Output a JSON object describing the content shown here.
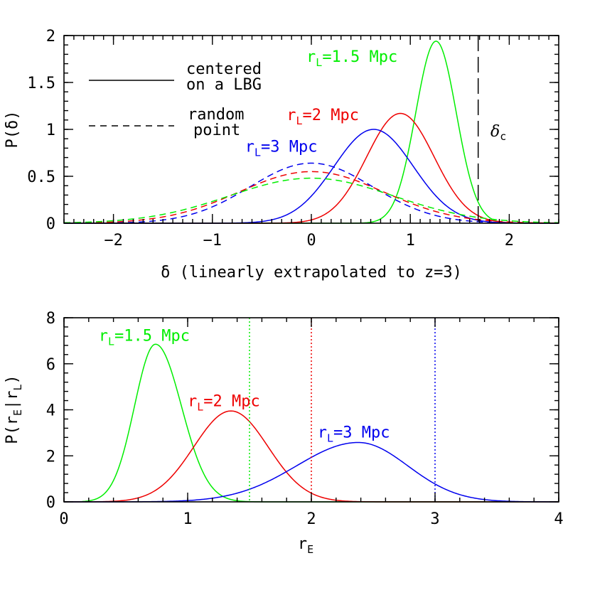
{
  "chart_data": [
    {
      "type": "line",
      "title": "",
      "xlabel": "δ (linearly extrapolated to z=3)",
      "ylabel": "P(δ)",
      "xlim": [
        -2.5,
        2.5
      ],
      "ylim": [
        0,
        2
      ],
      "x_ticks": [
        -2,
        -1,
        0,
        1,
        2
      ],
      "x_tick_labels": [
        "−2",
        "−1",
        "0",
        "1",
        "2"
      ],
      "y_ticks": [
        0,
        0.5,
        1,
        1.5,
        2
      ],
      "y_tick_labels": [
        "0",
        "0.5",
        "1",
        "1.5",
        "2"
      ],
      "legend": [
        {
          "style": "solid",
          "lines": [
            "centered",
            "on a LBG"
          ]
        },
        {
          "style": "dashed",
          "lines": [
            "random",
            "point"
          ]
        }
      ],
      "series": [
        {
          "name": "r_L=1.5 Mpc centered on a LBG",
          "color": "#00ee00",
          "style": "solid",
          "shape": "gaussian",
          "mean": 1.26,
          "sigma": 0.205,
          "peak": 1.94
        },
        {
          "name": "r_L=2 Mpc centered on a LBG",
          "color": "#ee0000",
          "style": "solid",
          "shape": "gaussian",
          "mean": 0.9,
          "sigma": 0.34,
          "peak": 1.17
        },
        {
          "name": "r_L=3 Mpc centered on a LBG",
          "color": "#0000ee",
          "style": "solid",
          "shape": "gaussian",
          "mean": 0.63,
          "sigma": 0.4,
          "peak": 1.0
        },
        {
          "name": "r_L=3 Mpc random point",
          "color": "#0000ee",
          "style": "dashed",
          "shape": "gaussian",
          "mean": 0.0,
          "sigma": 0.62,
          "peak": 0.64
        },
        {
          "name": "r_L=2 Mpc random point",
          "color": "#ee0000",
          "style": "dashed",
          "shape": "gaussian",
          "mean": 0.0,
          "sigma": 0.73,
          "peak": 0.55
        },
        {
          "name": "r_L=1.5 Mpc random point",
          "color": "#00ee00",
          "style": "dashed",
          "shape": "gaussian",
          "mean": 0.0,
          "sigma": 0.83,
          "peak": 0.48
        }
      ],
      "vlines": [
        {
          "x": 1.686,
          "color": "#000000",
          "style": "longdash",
          "label": "δ",
          "label_sub": "c"
        }
      ],
      "annotations": [
        {
          "text": "r",
          "sub": "L",
          "rest": "=1.5 Mpc",
          "color": "#00ee00",
          "at_x": -0.05,
          "at_y": 1.72
        },
        {
          "text": "r",
          "sub": "L",
          "rest": "=2 Mpc",
          "color": "#ee0000",
          "at_x": -0.25,
          "at_y": 1.1
        },
        {
          "text": "r",
          "sub": "L",
          "rest": "=3 Mpc",
          "color": "#0000ee",
          "at_x": -0.67,
          "at_y": 0.76
        }
      ]
    },
    {
      "type": "line",
      "title": "",
      "xlabel": "r",
      "xlabel_sub": "E",
      "ylabel": "P(r",
      "ylabel_parts": [
        "P(r",
        "E",
        "|r",
        "L",
        ")"
      ],
      "xlim": [
        0,
        4
      ],
      "ylim": [
        0,
        8
      ],
      "x_ticks": [
        0,
        1,
        2,
        3,
        4
      ],
      "x_tick_labels": [
        "0",
        "1",
        "2",
        "3",
        "4"
      ],
      "y_ticks": [
        0,
        2,
        4,
        6,
        8
      ],
      "y_tick_labels": [
        "0",
        "2",
        "4",
        "6",
        "8"
      ],
      "series": [
        {
          "name": "r_L=1.5 Mpc",
          "color": "#00ee00",
          "style": "solid",
          "shape": "skewnormal",
          "mean": 0.74,
          "sigma_left": 0.17,
          "sigma_right": 0.21,
          "peak": 6.85,
          "start": 0.15
        },
        {
          "name": "r_L=2 Mpc",
          "color": "#ee0000",
          "style": "solid",
          "shape": "skewnormal",
          "mean": 1.35,
          "sigma_left": 0.3,
          "sigma_right": 0.3,
          "peak": 3.95,
          "start": 0.15
        },
        {
          "name": "r_L=3 Mpc",
          "color": "#0000ee",
          "style": "solid",
          "shape": "skewnormal",
          "mean": 2.38,
          "sigma_left": 0.5,
          "sigma_right": 0.4,
          "peak": 2.58,
          "start": 0.15
        }
      ],
      "vlines": [
        {
          "x": 1.5,
          "color": "#00ee00",
          "style": "dotted"
        },
        {
          "x": 2.0,
          "color": "#ee0000",
          "style": "dotted"
        },
        {
          "x": 3.0,
          "color": "#0000ee",
          "style": "dotted"
        }
      ],
      "annotations": [
        {
          "text": "r",
          "sub": "L",
          "rest": "=1.5 Mpc",
          "color": "#00ee00",
          "at_x": 0.28,
          "at_y": 7.0
        },
        {
          "text": "r",
          "sub": "L",
          "rest": "=2 Mpc",
          "color": "#ee0000",
          "at_x": 1.0,
          "at_y": 4.15
        },
        {
          "text": "r",
          "sub": "L",
          "rest": "=3 Mpc",
          "color": "#0000ee",
          "at_x": 2.05,
          "at_y": 2.8
        }
      ]
    }
  ]
}
